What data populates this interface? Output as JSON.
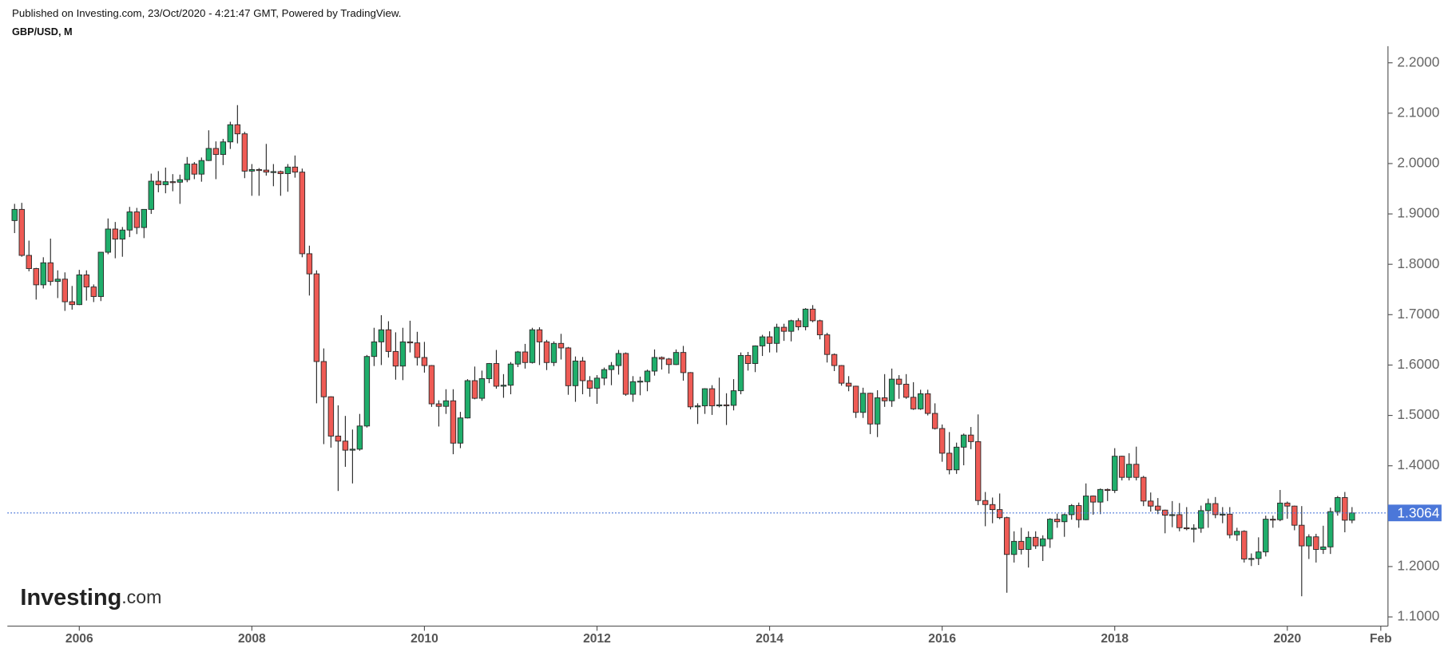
{
  "header": "Published on Investing.com, 23/Oct/2020 - 4:21:47 GMT, Powered by TradingView.",
  "logo": {
    "name": "Investing",
    "suffix": ".com"
  },
  "chart_data": {
    "type": "candlestick",
    "title": "GBP/USD, M",
    "up_color": "#1fae6b",
    "down_color": "#ef5b55",
    "outline_color": "#2b2b2b",
    "last_price": 1.3064,
    "last_color": "#4b77d9",
    "xlim": [
      "2005-03",
      "2021-03"
    ],
    "xticks": [
      {
        "value": "2006-01",
        "label": "2006"
      },
      {
        "value": "2008-01",
        "label": "2008"
      },
      {
        "value": "2010-01",
        "label": "2010"
      },
      {
        "value": "2012-01",
        "label": "2012"
      },
      {
        "value": "2014-01",
        "label": "2014"
      },
      {
        "value": "2016-01",
        "label": "2016"
      },
      {
        "value": "2018-01",
        "label": "2018"
      },
      {
        "value": "2020-01",
        "label": "2020"
      },
      {
        "value": "2021-02",
        "label": "Feb"
      }
    ],
    "ylim": [
      1.0817,
      2.233
    ],
    "yticks": [
      {
        "value": 1.1,
        "label": "1.1000"
      },
      {
        "value": 1.2,
        "label": "1.2000"
      },
      {
        "value": 1.3,
        "label": "1.3000"
      },
      {
        "value": 1.4,
        "label": "1.4000"
      },
      {
        "value": 1.5,
        "label": "1.5000"
      },
      {
        "value": 1.6,
        "label": "1.6000"
      },
      {
        "value": 1.7,
        "label": "1.7000"
      },
      {
        "value": 1.8,
        "label": "1.8000"
      },
      {
        "value": 1.9,
        "label": "1.9000"
      },
      {
        "value": 2.0,
        "label": "2.0000"
      },
      {
        "value": 2.1,
        "label": "2.1000"
      },
      {
        "value": 2.2,
        "label": "2.2000"
      }
    ],
    "x": [
      "2005-04",
      "2005-05",
      "2005-06",
      "2005-07",
      "2005-08",
      "2005-09",
      "2005-10",
      "2005-11",
      "2005-12",
      "2006-01",
      "2006-02",
      "2006-03",
      "2006-04",
      "2006-05",
      "2006-06",
      "2006-07",
      "2006-08",
      "2006-09",
      "2006-10",
      "2006-11",
      "2006-12",
      "2007-01",
      "2007-02",
      "2007-03",
      "2007-04",
      "2007-05",
      "2007-06",
      "2007-07",
      "2007-08",
      "2007-09",
      "2007-10",
      "2007-11",
      "2007-12",
      "2008-01",
      "2008-02",
      "2008-03",
      "2008-04",
      "2008-05",
      "2008-06",
      "2008-07",
      "2008-08",
      "2008-09",
      "2008-10",
      "2008-11",
      "2008-12",
      "2009-01",
      "2009-02",
      "2009-03",
      "2009-04",
      "2009-05",
      "2009-06",
      "2009-07",
      "2009-08",
      "2009-09",
      "2009-10",
      "2009-11",
      "2009-12",
      "2010-01",
      "2010-02",
      "2010-03",
      "2010-04",
      "2010-05",
      "2010-06",
      "2010-07",
      "2010-08",
      "2010-09",
      "2010-10",
      "2010-11",
      "2010-12",
      "2011-01",
      "2011-02",
      "2011-03",
      "2011-04",
      "2011-05",
      "2011-06",
      "2011-07",
      "2011-08",
      "2011-09",
      "2011-10",
      "2011-11",
      "2011-12",
      "2012-01",
      "2012-02",
      "2012-03",
      "2012-04",
      "2012-05",
      "2012-06",
      "2012-07",
      "2012-08",
      "2012-09",
      "2012-10",
      "2012-11",
      "2012-12",
      "2013-01",
      "2013-02",
      "2013-03",
      "2013-04",
      "2013-05",
      "2013-06",
      "2013-07",
      "2013-08",
      "2013-09",
      "2013-10",
      "2013-11",
      "2013-12",
      "2014-01",
      "2014-02",
      "2014-03",
      "2014-04",
      "2014-05",
      "2014-06",
      "2014-07",
      "2014-08",
      "2014-09",
      "2014-10",
      "2014-11",
      "2014-12",
      "2015-01",
      "2015-02",
      "2015-03",
      "2015-04",
      "2015-05",
      "2015-06",
      "2015-07",
      "2015-08",
      "2015-09",
      "2015-10",
      "2015-11",
      "2015-12",
      "2016-01",
      "2016-02",
      "2016-03",
      "2016-04",
      "2016-05",
      "2016-06",
      "2016-07",
      "2016-08",
      "2016-09",
      "2016-10",
      "2016-11",
      "2016-12",
      "2017-01",
      "2017-02",
      "2017-03",
      "2017-04",
      "2017-05",
      "2017-06",
      "2017-07",
      "2017-08",
      "2017-09",
      "2017-10",
      "2017-11",
      "2017-12",
      "2018-01",
      "2018-02",
      "2018-03",
      "2018-04",
      "2018-05",
      "2018-06",
      "2018-07",
      "2018-08",
      "2018-09",
      "2018-10",
      "2018-11",
      "2018-12",
      "2019-01",
      "2019-02",
      "2019-03",
      "2019-04",
      "2019-05",
      "2019-06",
      "2019-07",
      "2019-08",
      "2019-09",
      "2019-10",
      "2019-11",
      "2019-12",
      "2020-01",
      "2020-02",
      "2020-03",
      "2020-04",
      "2020-05",
      "2020-06",
      "2020-07",
      "2020-08",
      "2020-09",
      "2020-10"
    ],
    "open": [
      1.8868,
      1.909,
      1.8177,
      1.7915,
      1.7593,
      1.803,
      1.766,
      1.7705,
      1.7257,
      1.72,
      1.779,
      1.755,
      1.736,
      1.824,
      1.87,
      1.85,
      1.868,
      1.904,
      1.873,
      1.909,
      1.965,
      1.958,
      1.964,
      1.963,
      1.968,
      1.999,
      1.979,
      2.006,
      2.03,
      2.018,
      2.043,
      2.077,
      2.059,
      1.985,
      1.988,
      1.987,
      1.983,
      1.984,
      1.98,
      1.993,
      1.983,
      1.821,
      1.781,
      1.607,
      1.537,
      1.459,
      1.449,
      1.431,
      1.433,
      1.479,
      1.617,
      1.646,
      1.67,
      1.627,
      1.598,
      1.646,
      1.644,
      1.615,
      1.599,
      1.523,
      1.518,
      1.529,
      1.445,
      1.495,
      1.569,
      1.534,
      1.573,
      1.603,
      1.558,
      1.56,
      1.602,
      1.626,
      1.605,
      1.67,
      1.646,
      1.605,
      1.643,
      1.634,
      1.559,
      1.608,
      1.569,
      1.554,
      1.574,
      1.591,
      1.599,
      1.623,
      1.542,
      1.567,
      1.567,
      1.588,
      1.615,
      1.612,
      1.601,
      1.625,
      1.585,
      1.517,
      1.519,
      1.553,
      1.519,
      1.521,
      1.52,
      1.549,
      1.619,
      1.603,
      1.638,
      1.656,
      1.643,
      1.675,
      1.667,
      1.688,
      1.676,
      1.711,
      1.688,
      1.66,
      1.621,
      1.599,
      1.564,
      1.558,
      1.506,
      1.544,
      1.483,
      1.535,
      1.529,
      1.572,
      1.562,
      1.536,
      1.513,
      1.543,
      1.504,
      1.474,
      1.425,
      1.392,
      1.437,
      1.461,
      1.448,
      1.331,
      1.323,
      1.313,
      1.297,
      1.224,
      1.25,
      1.234,
      1.258,
      1.241,
      1.255,
      1.294,
      1.289,
      1.303,
      1.321,
      1.293,
      1.34,
      1.328,
      1.353,
      1.351,
      1.419,
      1.377,
      1.403,
      1.377,
      1.33,
      1.32,
      1.312,
      1.302,
      1.303,
      1.277,
      1.275,
      1.276,
      1.311,
      1.325,
      1.303,
      1.304,
      1.263,
      1.27,
      1.215,
      1.216,
      1.229,
      1.294,
      1.293,
      1.326,
      1.32,
      1.282,
      1.241,
      1.259,
      1.234,
      1.239,
      1.309,
      1.337,
      1.292
    ],
    "high": [
      1.92,
      1.922,
      1.847,
      1.793,
      1.814,
      1.851,
      1.788,
      1.784,
      1.757,
      1.789,
      1.788,
      1.76,
      1.824,
      1.891,
      1.884,
      1.874,
      1.914,
      1.912,
      1.909,
      1.98,
      1.985,
      1.992,
      1.979,
      1.978,
      2.013,
      2.003,
      2.012,
      2.066,
      2.044,
      2.049,
      2.083,
      2.116,
      2.063,
      1.999,
      1.991,
      2.039,
      1.999,
      1.986,
      1.999,
      2.016,
      1.99,
      1.837,
      1.788,
      1.633,
      1.538,
      1.52,
      1.499,
      1.472,
      1.503,
      1.62,
      1.674,
      1.699,
      1.687,
      1.665,
      1.674,
      1.688,
      1.666,
      1.646,
      1.6,
      1.53,
      1.552,
      1.552,
      1.507,
      1.572,
      1.597,
      1.589,
      1.604,
      1.63,
      1.582,
      1.606,
      1.628,
      1.642,
      1.674,
      1.675,
      1.65,
      1.647,
      1.662,
      1.636,
      1.617,
      1.616,
      1.578,
      1.58,
      1.595,
      1.606,
      1.63,
      1.625,
      1.578,
      1.577,
      1.591,
      1.631,
      1.617,
      1.614,
      1.631,
      1.638,
      1.586,
      1.524,
      1.554,
      1.56,
      1.575,
      1.544,
      1.572,
      1.625,
      1.626,
      1.639,
      1.66,
      1.667,
      1.682,
      1.682,
      1.69,
      1.693,
      1.713,
      1.719,
      1.69,
      1.664,
      1.623,
      1.6,
      1.578,
      1.559,
      1.555,
      1.545,
      1.55,
      1.582,
      1.593,
      1.58,
      1.582,
      1.566,
      1.551,
      1.551,
      1.524,
      1.482,
      1.467,
      1.446,
      1.464,
      1.477,
      1.502,
      1.348,
      1.337,
      1.345,
      1.299,
      1.27,
      1.277,
      1.27,
      1.27,
      1.262,
      1.296,
      1.305,
      1.305,
      1.324,
      1.327,
      1.365,
      1.341,
      1.355,
      1.355,
      1.435,
      1.42,
      1.425,
      1.438,
      1.38,
      1.347,
      1.336,
      1.313,
      1.33,
      1.326,
      1.318,
      1.284,
      1.321,
      1.335,
      1.338,
      1.318,
      1.318,
      1.277,
      1.272,
      1.226,
      1.258,
      1.301,
      1.301,
      1.352,
      1.329,
      1.321,
      1.32,
      1.264,
      1.265,
      1.281,
      1.317,
      1.34,
      1.348,
      1.318
    ],
    "low": [
      1.862,
      1.815,
      1.786,
      1.73,
      1.752,
      1.758,
      1.733,
      1.7075,
      1.71,
      1.719,
      1.728,
      1.725,
      1.727,
      1.82,
      1.812,
      1.815,
      1.854,
      1.86,
      1.852,
      1.9,
      1.943,
      1.941,
      1.945,
      1.92,
      1.963,
      1.969,
      1.964,
      2.005,
      1.969,
      1.997,
      2.029,
      2.04,
      1.971,
      1.936,
      1.936,
      1.976,
      1.955,
      1.936,
      1.944,
      1.972,
      1.814,
      1.738,
      1.524,
      1.443,
      1.436,
      1.35,
      1.398,
      1.365,
      1.43,
      1.476,
      1.598,
      1.6,
      1.615,
      1.571,
      1.57,
      1.625,
      1.599,
      1.585,
      1.517,
      1.478,
      1.503,
      1.423,
      1.435,
      1.494,
      1.532,
      1.529,
      1.564,
      1.553,
      1.535,
      1.542,
      1.596,
      1.593,
      1.603,
      1.6,
      1.59,
      1.598,
      1.611,
      1.541,
      1.527,
      1.542,
      1.537,
      1.523,
      1.56,
      1.56,
      1.581,
      1.539,
      1.527,
      1.54,
      1.548,
      1.579,
      1.591,
      1.583,
      1.6,
      1.569,
      1.512,
      1.483,
      1.503,
      1.501,
      1.516,
      1.481,
      1.51,
      1.542,
      1.589,
      1.586,
      1.618,
      1.625,
      1.625,
      1.648,
      1.647,
      1.669,
      1.669,
      1.685,
      1.651,
      1.605,
      1.588,
      1.559,
      1.548,
      1.495,
      1.495,
      1.463,
      1.457,
      1.517,
      1.517,
      1.533,
      1.533,
      1.511,
      1.511,
      1.5,
      1.472,
      1.408,
      1.383,
      1.384,
      1.401,
      1.433,
      1.322,
      1.28,
      1.286,
      1.294,
      1.148,
      1.208,
      1.224,
      1.198,
      1.235,
      1.211,
      1.237,
      1.277,
      1.259,
      1.293,
      1.277,
      1.292,
      1.303,
      1.304,
      1.33,
      1.346,
      1.371,
      1.371,
      1.371,
      1.32,
      1.309,
      1.304,
      1.266,
      1.278,
      1.27,
      1.272,
      1.248,
      1.267,
      1.277,
      1.296,
      1.286,
      1.256,
      1.251,
      1.208,
      1.201,
      1.203,
      1.22,
      1.277,
      1.29,
      1.295,
      1.272,
      1.141,
      1.215,
      1.208,
      1.225,
      1.225,
      1.301,
      1.268,
      1.286
    ],
    "close": [
      1.909,
      1.8177,
      1.7915,
      1.7593,
      1.803,
      1.766,
      1.7705,
      1.7257,
      1.72,
      1.779,
      1.755,
      1.736,
      1.824,
      1.87,
      1.85,
      1.868,
      1.904,
      1.873,
      1.909,
      1.965,
      1.958,
      1.964,
      1.963,
      1.968,
      1.999,
      1.979,
      2.006,
      2.03,
      2.018,
      2.043,
      2.077,
      2.059,
      1.985,
      1.988,
      1.987,
      1.983,
      1.984,
      1.98,
      1.993,
      1.983,
      1.821,
      1.781,
      1.607,
      1.537,
      1.459,
      1.449,
      1.431,
      1.433,
      1.479,
      1.617,
      1.646,
      1.67,
      1.627,
      1.598,
      1.646,
      1.644,
      1.615,
      1.599,
      1.523,
      1.518,
      1.529,
      1.445,
      1.495,
      1.569,
      1.534,
      1.573,
      1.603,
      1.558,
      1.56,
      1.602,
      1.626,
      1.605,
      1.67,
      1.646,
      1.605,
      1.643,
      1.634,
      1.559,
      1.608,
      1.569,
      1.554,
      1.574,
      1.591,
      1.599,
      1.623,
      1.542,
      1.567,
      1.568,
      1.588,
      1.615,
      1.612,
      1.601,
      1.625,
      1.585,
      1.517,
      1.519,
      1.553,
      1.519,
      1.521,
      1.52,
      1.549,
      1.619,
      1.603,
      1.638,
      1.656,
      1.643,
      1.675,
      1.667,
      1.688,
      1.676,
      1.711,
      1.688,
      1.66,
      1.621,
      1.599,
      1.564,
      1.558,
      1.506,
      1.544,
      1.483,
      1.535,
      1.529,
      1.572,
      1.562,
      1.536,
      1.513,
      1.543,
      1.504,
      1.474,
      1.425,
      1.392,
      1.437,
      1.461,
      1.448,
      1.331,
      1.323,
      1.313,
      1.297,
      1.224,
      1.25,
      1.234,
      1.258,
      1.241,
      1.255,
      1.294,
      1.289,
      1.303,
      1.321,
      1.293,
      1.34,
      1.328,
      1.353,
      1.351,
      1.419,
      1.377,
      1.403,
      1.377,
      1.33,
      1.32,
      1.312,
      1.302,
      1.303,
      1.277,
      1.275,
      1.276,
      1.311,
      1.325,
      1.303,
      1.304,
      1.263,
      1.27,
      1.215,
      1.216,
      1.229,
      1.294,
      1.293,
      1.326,
      1.32,
      1.282,
      1.241,
      1.259,
      1.234,
      1.239,
      1.309,
      1.337,
      1.292,
      1.3064
    ]
  }
}
